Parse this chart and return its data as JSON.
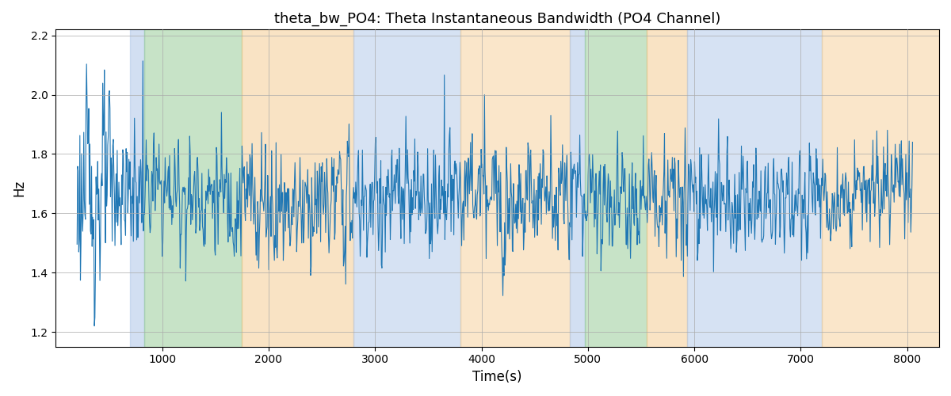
{
  "title": "theta_bw_PO4: Theta Instantaneous Bandwidth (PO4 Channel)",
  "xlabel": "Time(s)",
  "ylabel": "Hz",
  "xlim": [
    0,
    8300
  ],
  "ylim": [
    1.15,
    2.22
  ],
  "yticks": [
    1.2,
    1.4,
    1.6,
    1.8,
    2.0,
    2.2
  ],
  "xticks": [
    1000,
    2000,
    3000,
    4000,
    5000,
    6000,
    7000,
    8000
  ],
  "line_color": "#2077b4",
  "line_width": 0.8,
  "background_color": "#ffffff",
  "grid_color": "#aaaaaa",
  "colored_bands": [
    {
      "xmin": 700,
      "xmax": 830,
      "color": "#aec6e8",
      "alpha": 0.55
    },
    {
      "xmin": 830,
      "xmax": 1750,
      "color": "#90c990",
      "alpha": 0.5
    },
    {
      "xmin": 1750,
      "xmax": 2800,
      "color": "#f5c98a",
      "alpha": 0.5
    },
    {
      "xmin": 2800,
      "xmax": 3800,
      "color": "#aec6e8",
      "alpha": 0.5
    },
    {
      "xmin": 3800,
      "xmax": 4830,
      "color": "#f5c98a",
      "alpha": 0.45
    },
    {
      "xmin": 4830,
      "xmax": 4970,
      "color": "#aec6e8",
      "alpha": 0.55
    },
    {
      "xmin": 4970,
      "xmax": 5550,
      "color": "#90c990",
      "alpha": 0.5
    },
    {
      "xmin": 5550,
      "xmax": 5930,
      "color": "#f5c98a",
      "alpha": 0.5
    },
    {
      "xmin": 5930,
      "xmax": 7200,
      "color": "#aec6e8",
      "alpha": 0.5
    },
    {
      "xmin": 7200,
      "xmax": 8300,
      "color": "#f5c98a",
      "alpha": 0.45
    }
  ],
  "title_fontsize": 13,
  "figsize": [
    12.0,
    5.0
  ],
  "dpi": 100
}
